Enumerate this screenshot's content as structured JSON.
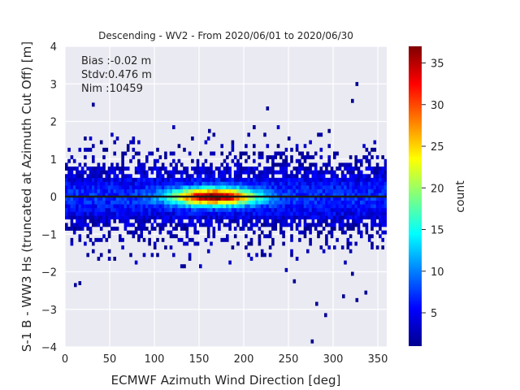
{
  "chart_data": {
    "type": "heatmap",
    "title": "Descending - WV2 - From 2020/06/01 to 2020/06/30",
    "xlabel": "ECMWF Azimuth Wind Direction [deg]",
    "ylabel": "S-1 B - WW3 Hs (truncated at Azimuth Cut Off) [m]",
    "xlim": [
      0,
      360
    ],
    "ylim": [
      -4,
      4
    ],
    "x_ticks": [
      "0",
      "50",
      "100",
      "150",
      "200",
      "250",
      "300",
      "350"
    ],
    "y_ticks": [
      "4",
      "3",
      "2",
      "1",
      "0",
      "−1",
      "−2",
      "−3",
      "−4"
    ],
    "x_tick_values": [
      0,
      50,
      100,
      150,
      200,
      250,
      300,
      350
    ],
    "y_tick_values": [
      4,
      3,
      2,
      1,
      0,
      -1,
      -2,
      -3,
      -4
    ],
    "grid": true,
    "annotations": [
      "Bias :-0.02 m",
      "Stdv:0.476 m",
      "Nim :10459"
    ],
    "colorbar": {
      "label": "count",
      "range": [
        1,
        37
      ],
      "ticks": [
        "5",
        "10",
        "15",
        "20",
        "25",
        "30",
        "35"
      ],
      "tick_values": [
        5,
        10,
        15,
        20,
        25,
        30,
        35
      ],
      "colormap": "jet"
    },
    "density_model": {
      "core": {
        "x_range": [
          0,
          360
        ],
        "y_range": [
          -0.8,
          0.8
        ]
      },
      "peak": {
        "x": 165,
        "y": 0.0,
        "count": 37
      },
      "tail_points": [
        [
          30,
          2.4
        ],
        [
          325,
          2.95
        ],
        [
          320,
          2.5
        ],
        [
          225,
          2.3
        ],
        [
          210,
          1.8
        ],
        [
          160,
          1.7
        ],
        [
          10,
          -2.4
        ],
        [
          15,
          -2.35
        ],
        [
          275,
          -3.9
        ],
        [
          280,
          -2.9
        ],
        [
          290,
          -3.2
        ],
        [
          325,
          -2.8
        ],
        [
          310,
          -2.7
        ],
        [
          255,
          -2.3
        ],
        [
          320,
          -2.1
        ],
        [
          335,
          -2.6
        ]
      ]
    },
    "mean_line": {
      "y": 0.0,
      "color": "#1a1a1a"
    }
  },
  "colors": {
    "axes_bg": "#eaeaf2",
    "grid": "#ffffff"
  }
}
